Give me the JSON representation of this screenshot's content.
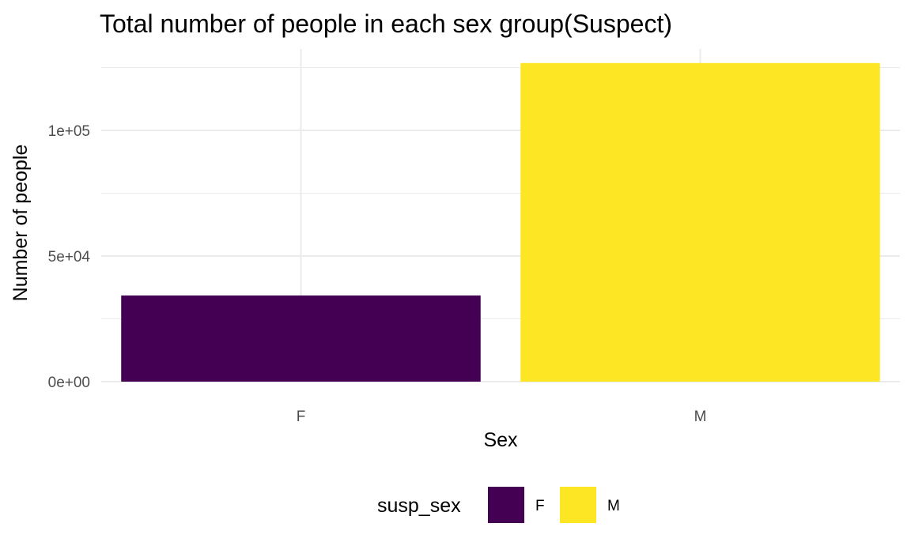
{
  "chart_data": {
    "type": "bar",
    "title": "Total number of people in each sex group(Suspect)",
    "xlabel": "Sex",
    "ylabel": "Number of people",
    "categories": [
      "F",
      "M"
    ],
    "values": [
      34300,
      126800
    ],
    "colors": [
      "#440154",
      "#FDE725"
    ],
    "ylim": [
      0,
      130000
    ],
    "y_ticks": [
      {
        "value": 0,
        "label": "0e+00"
      },
      {
        "value": 50000,
        "label": "5e+04"
      },
      {
        "value": 100000,
        "label": "1e+05"
      }
    ],
    "y_minor_ticks": [
      25000,
      75000,
      125000
    ],
    "grid": true,
    "legend": {
      "title": "susp_sex",
      "position": "bottom",
      "entries": [
        {
          "label": "F",
          "color": "#440154"
        },
        {
          "label": "M",
          "color": "#FDE725"
        }
      ]
    }
  }
}
